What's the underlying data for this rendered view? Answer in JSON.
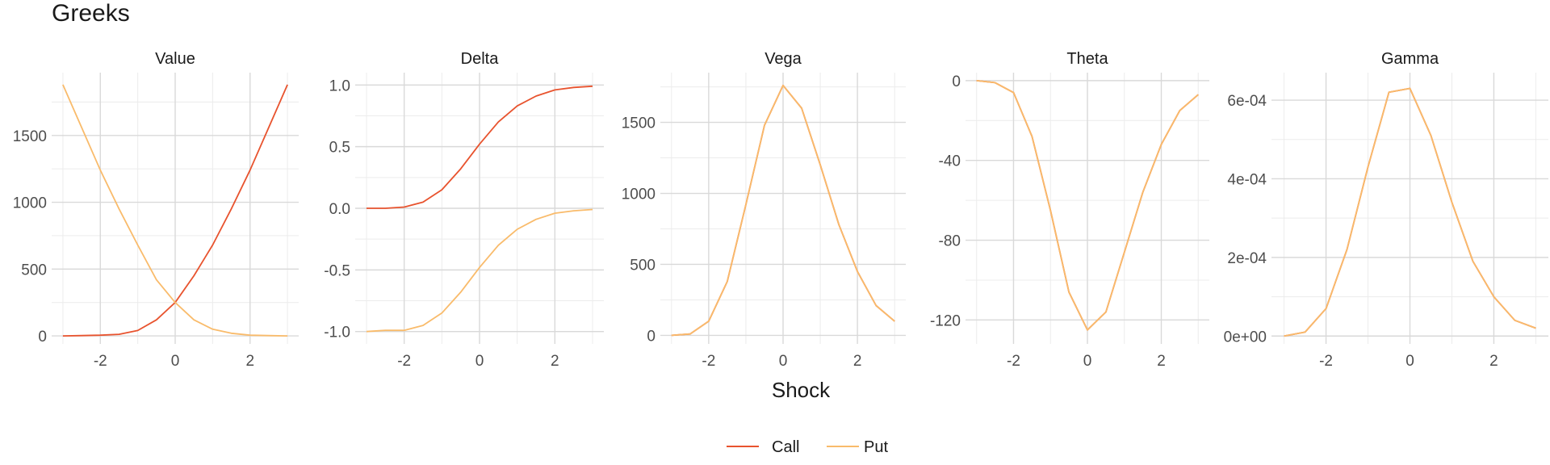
{
  "chart_data": {
    "type": "line",
    "title": "Greeks",
    "xlabel": "Shock",
    "legend": {
      "position": "bottom",
      "entries": [
        "Call",
        "Put"
      ]
    },
    "colors": {
      "Call": "#e8532e",
      "Put": "#f9bb6b",
      "grid_major": "#d9d9d9",
      "grid_minor": "#ececec"
    },
    "x": [
      -3,
      -2.5,
      -2,
      -1.5,
      -1,
      -0.5,
      0,
      0.5,
      1,
      1.5,
      2,
      2.5,
      3
    ],
    "panels": [
      {
        "name": "Value",
        "xlim": [
          -3.3,
          3.3
        ],
        "ylim": [
          -60,
          1970
        ],
        "xticks": [
          -2,
          0,
          2
        ],
        "xtick_labels": [
          "-2",
          "0",
          "2"
        ],
        "yticks": [
          0,
          500,
          1000,
          1500
        ],
        "ytick_labels": [
          "0",
          "500",
          "1000",
          "1500"
        ],
        "series": [
          {
            "name": "Call",
            "values": [
              0,
              2,
              5,
              12,
              40,
              120,
              250,
              450,
              680,
              950,
              1240,
              1560,
              1880
            ]
          },
          {
            "name": "Put",
            "values": [
              1880,
              1560,
              1240,
              950,
              680,
              420,
              250,
              120,
              50,
              20,
              5,
              2,
              0
            ]
          }
        ]
      },
      {
        "name": "Delta",
        "xlim": [
          -3.3,
          3.3
        ],
        "ylim": [
          -1.1,
          1.1
        ],
        "xticks": [
          -2,
          0,
          2
        ],
        "xtick_labels": [
          "-2",
          "0",
          "2"
        ],
        "yticks": [
          -1.0,
          -0.5,
          0.0,
          0.5,
          1.0
        ],
        "ytick_labels": [
          "-1.0",
          "-0.5",
          "0.0",
          "0.5",
          "1.0"
        ],
        "series": [
          {
            "name": "Call",
            "values": [
              0,
              0,
              0.01,
              0.05,
              0.15,
              0.32,
              0.52,
              0.7,
              0.83,
              0.91,
              0.96,
              0.98,
              0.99
            ]
          },
          {
            "name": "Put",
            "values": [
              -1.0,
              -0.99,
              -0.99,
              -0.95,
              -0.85,
              -0.68,
              -0.48,
              -0.3,
              -0.17,
              -0.09,
              -0.04,
              -0.02,
              -0.01
            ]
          }
        ]
      },
      {
        "name": "Vega",
        "xlim": [
          -3.3,
          3.3
        ],
        "ylim": [
          -60,
          1850
        ],
        "xticks": [
          -2,
          0,
          2
        ],
        "xtick_labels": [
          "-2",
          "0",
          "2"
        ],
        "yticks": [
          0,
          500,
          1000,
          1500
        ],
        "ytick_labels": [
          "0",
          "500",
          "1000",
          "1500"
        ],
        "series": [
          {
            "name": "Call",
            "values": [
              0,
              10,
              100,
              380,
              920,
              1480,
              1760,
              1600,
              1200,
              780,
              450,
              210,
              100
            ]
          },
          {
            "name": "Put",
            "values": [
              0,
              10,
              100,
              380,
              920,
              1480,
              1760,
              1600,
              1200,
              780,
              450,
              210,
              100
            ]
          }
        ]
      },
      {
        "name": "Theta",
        "xlim": [
          -3.3,
          3.3
        ],
        "ylim": [
          -132,
          4
        ],
        "xticks": [
          -2,
          0,
          2
        ],
        "xtick_labels": [
          "-2",
          "0",
          "2"
        ],
        "yticks": [
          -120,
          -80,
          -40,
          0
        ],
        "ytick_labels": [
          "-120",
          "-80",
          "-40",
          "0"
        ],
        "series": [
          {
            "name": "Call",
            "values": [
              0,
              -1,
              -6,
              -28,
              -65,
              -106,
              -125,
              -116,
              -86,
              -56,
              -32,
              -15,
              -7
            ]
          },
          {
            "name": "Put",
            "values": [
              0,
              -1,
              -6,
              -28,
              -65,
              -106,
              -125,
              -116,
              -86,
              -56,
              -32,
              -15,
              -7
            ]
          }
        ]
      },
      {
        "name": "Gamma",
        "xlim": [
          -3.3,
          3.3
        ],
        "ylim": [
          -2e-05,
          0.00067
        ],
        "xticks": [
          -2,
          0,
          2
        ],
        "xtick_labels": [
          "-2",
          "0",
          "2"
        ],
        "yticks": [
          0,
          0.0002,
          0.0004,
          0.0006
        ],
        "ytick_labels": [
          "0e+00",
          "2e-04",
          "4e-04",
          "6e-04"
        ],
        "series": [
          {
            "name": "Call",
            "values": [
              0,
              1e-05,
              7e-05,
              0.00022,
              0.00043,
              0.00062,
              0.00063,
              0.00051,
              0.00034,
              0.00019,
              0.0001,
              4e-05,
              2e-05
            ]
          },
          {
            "name": "Put",
            "values": [
              0,
              1e-05,
              7e-05,
              0.00022,
              0.00043,
              0.00062,
              0.00063,
              0.00051,
              0.00034,
              0.00019,
              0.0001,
              4e-05,
              2e-05
            ]
          }
        ]
      }
    ]
  }
}
